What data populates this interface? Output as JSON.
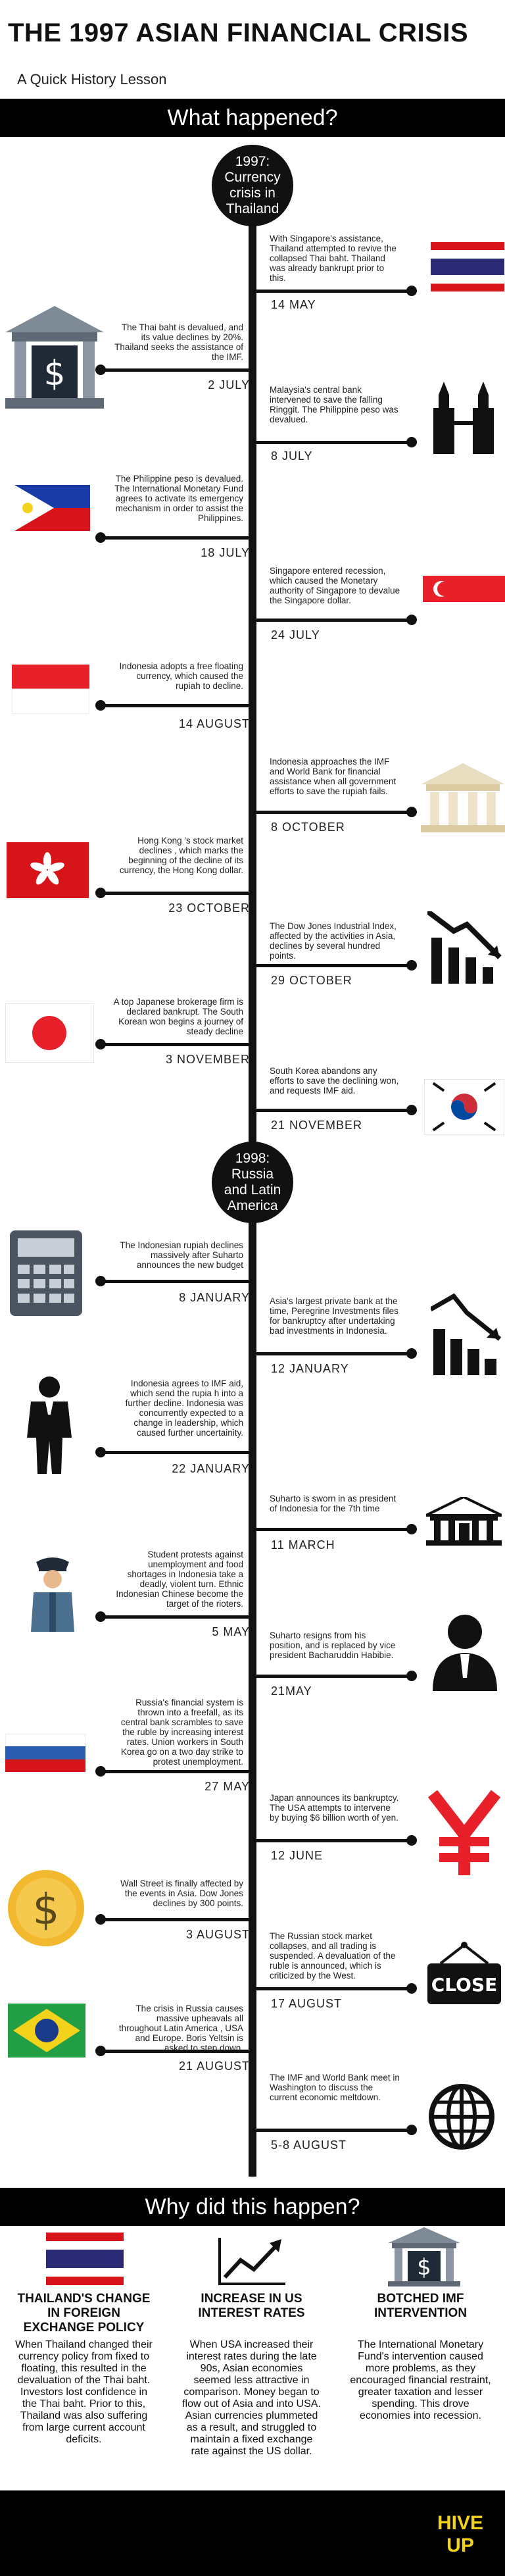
{
  "header": {
    "title": "THE 1997 ASIAN FINANCIAL CRISIS",
    "subtitle": "A Quick History Lesson"
  },
  "section_what": "What happened?",
  "section_why": "Why did this happen?",
  "eras": {
    "y1997": "1997: Currency crisis in Thailand",
    "y1998": "1998: Russia and Latin America"
  },
  "events": [
    {
      "text": "With Singapore's assistance, Thailand attempted to revive the collapsed Thai baht. Thailand was already bankrupt prior to this.",
      "date": "14 MAY",
      "icon": "thailand-flag-icon"
    },
    {
      "text": "The Thai baht is devalued, and its value declines by 20%. Thailand seeks the assistance of the IMF.",
      "date": "2 JULY",
      "icon": "bank-dollar-icon"
    },
    {
      "text": "Malaysia's central bank intervened to save the falling Ringgit. The Philippine peso was devalued.",
      "date": "8 JULY",
      "icon": "petronas-towers-icon"
    },
    {
      "text": "The Philippine peso is devalued. The International Monetary Fund agrees to activate its emergency mechanism in order to assist the Philippines.",
      "date": "18 JULY",
      "icon": "philippines-flag-icon"
    },
    {
      "text": "Singapore entered recession, which caused the Monetary authority of Singapore to devalue the Singapore dollar.",
      "date": "24 JULY",
      "icon": "singapore-flag-icon"
    },
    {
      "text": "Indonesia adopts a free floating currency, which caused the rupiah to decline.",
      "date": "14 AUGUST",
      "icon": "indonesia-flag-icon"
    },
    {
      "text": "Indonesia approaches the IMF and World Bank for financial assistance when all government efforts to save the rupiah fails.",
      "date": "8 OCTOBER",
      "icon": "bank-building-icon"
    },
    {
      "text": "Hong Kong 's stock market declines , which marks the beginning of the decline of its currency, the Hong Kong dollar.",
      "date": "23 OCTOBER",
      "icon": "hong-kong-flag-icon"
    },
    {
      "text": "The Dow Jones Industrial Index, affected by the activities in Asia, declines by several hundred points.",
      "date": "29 OCTOBER",
      "icon": "down-trend-chart-icon"
    },
    {
      "text": "A top Japanese brokerage firm is declared bankrupt. The South Korean won begins a journey of steady decline",
      "date": "3 NOVEMBER",
      "icon": "japan-flag-icon"
    },
    {
      "text": "South Korea abandons any efforts to save the declining won, and requests IMF aid.",
      "date": "21 NOVEMBER",
      "icon": "south-korea-flag-icon"
    },
    {
      "text": "The Indonesian rupiah declines massively after Suharto announces the new budget",
      "date": "8 JANUARY",
      "icon": "calculator-icon"
    },
    {
      "text": "Asia's largest private bank at the time, Peregrine Investments files for bankruptcy after undertaking bad investments in Indonesia.",
      "date": "12 JANUARY",
      "icon": "declining-bar-chart-icon"
    },
    {
      "text": "Indonesia agrees to IMF aid, which send the rupia h into a further decline. Indonesia was concurrently expected to a change in leadership, which caused further uncertainity.",
      "date": "22 JANUARY",
      "icon": "businessman-icon"
    },
    {
      "text": "Suharto is sworn in as president of Indonesia for the 7th time",
      "date": "11 MARCH",
      "icon": "government-building-icon"
    },
    {
      "text": "Student protests against unemployment and food shortages in Indonesia take a deadly, violent turn. Ethnic Indonesian Chinese become the target of the rioters.",
      "date": "5 MAY",
      "icon": "police-officer-icon"
    },
    {
      "text": "Suharto resigns from his position, and is replaced by vice president Bacharuddin Habibie.",
      "date": "21MAY",
      "icon": "leader-silhouette-icon"
    },
    {
      "text": "Russia's financial system is thrown into a freefall, as its central bank scrambles to save the ruble by increasing interest rates. Union workers in South Korea go on a two day strike to protest unemployment.",
      "date": "27 MAY",
      "icon": "russia-flag-icon"
    },
    {
      "text": "Japan announces its bankruptcy. The USA attempts to intervene by buying $6 billion worth of yen.",
      "date": "12 JUNE",
      "icon": "yen-icon"
    },
    {
      "text": "Wall Street is finally affected by the events in Asia. Dow Jones declines by 300 points.",
      "date": "3 AUGUST",
      "icon": "dollar-coin-icon"
    },
    {
      "text": "The Russian stock market collapses, and all trading is suspended. A devaluation of the ruble is announced, which is criticized by the West.",
      "date": "17 AUGUST",
      "icon": "close-sign-icon"
    },
    {
      "text": "The crisis in Russia causes massive upheavals all throughout Latin America , USA and Europe. Boris Yeltsin is asked to step down.",
      "date": "21 AUGUST",
      "icon": "brazil-flag-icon"
    },
    {
      "text": "The IMF and World Bank meet in Washington to discuss the current economic meltdown.",
      "date": "5-8 AUGUST",
      "icon": "globe-icon"
    }
  ],
  "causes": [
    {
      "title": "THAILAND'S CHANGE IN FOREIGN EXCHANGE POLICY",
      "text": "When Thailand changed their currency policy from fixed to floating, this resulted in the devaluation of the Thai baht. Investors lost confidence in the Thai baht. Prior to this, Thailand was also suffering from large current account deficits.",
      "icon": "thailand-flag-icon"
    },
    {
      "title": "INCREASE IN US INTEREST RATES",
      "text": "When USA increased their interest rates during the late 90s, Asian economies seemed less attractive in comparison. Money began to flow out of Asia and into USA. Asian currencies plummeted as a result, and struggled to maintain a fixed exchange rate against the US dollar.",
      "icon": "rising-chart-icon"
    },
    {
      "title": "BOTCHED IMF INTERVENTION",
      "text": "The International Monetary Fund's intervention caused more problems, as they encouraged financial restraint, greater taxation and lesser spending. This drove economies into recession.",
      "icon": "bank-dollar-icon"
    }
  ],
  "footer": {
    "logo": "HIVE UP"
  },
  "colors": {
    "accent": "#000000",
    "thai_red": "#d7141a",
    "thai_blue": "#2b2a75",
    "logo_yellow": "#f3d21b"
  }
}
